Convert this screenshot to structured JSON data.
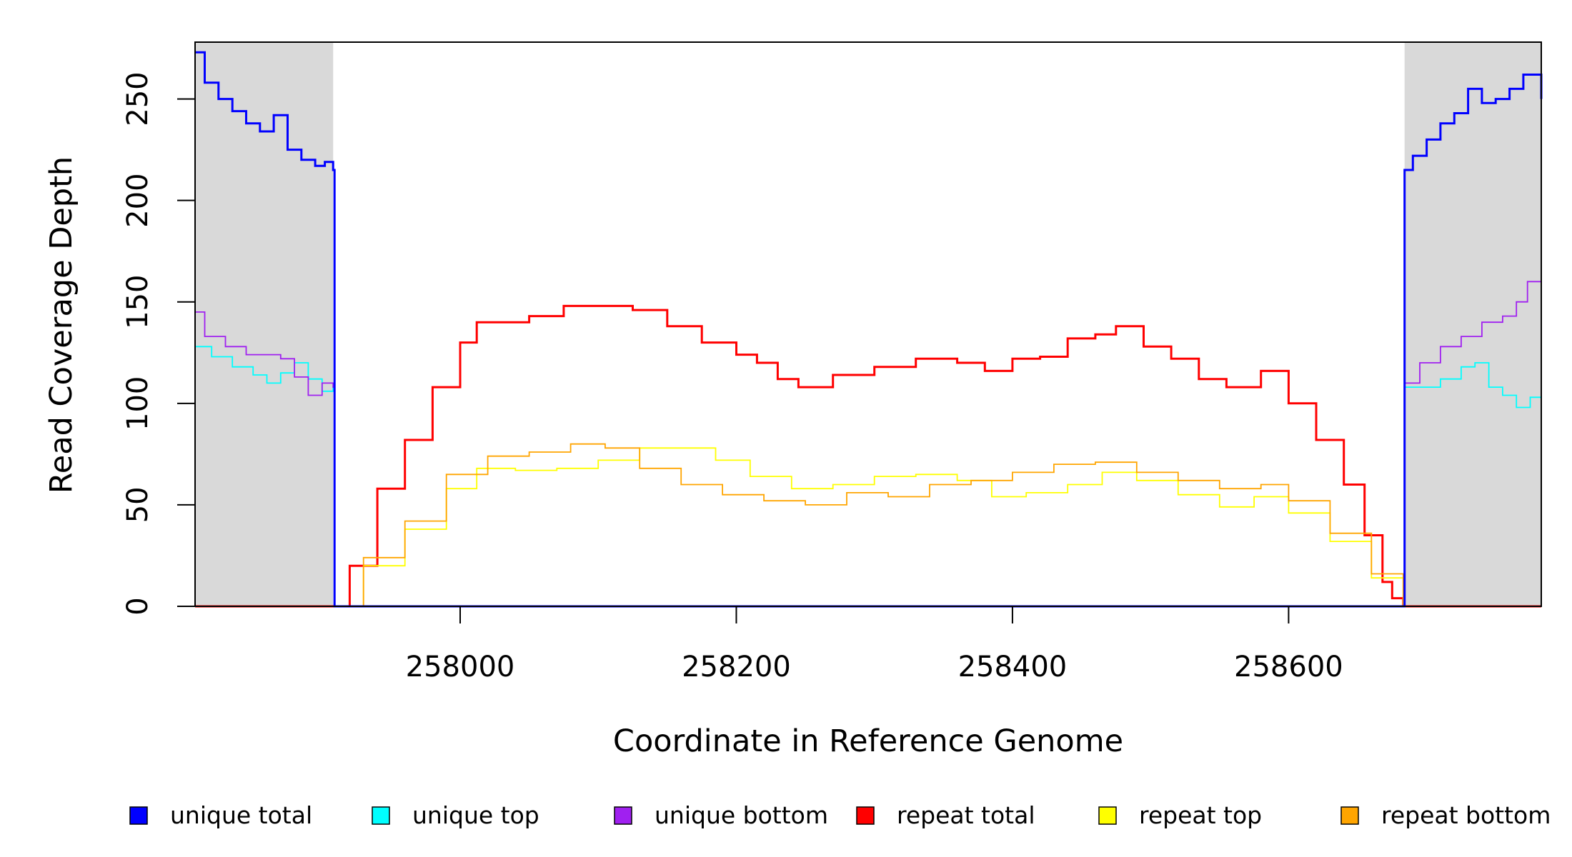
{
  "chart_data": {
    "type": "line",
    "title": "",
    "xlabel": "Coordinate in Reference Genome",
    "ylabel": "Read Coverage Depth",
    "xlim": [
      257808,
      258783
    ],
    "ylim": [
      0,
      278
    ],
    "x_ticks": [
      258000,
      258200,
      258400,
      258600
    ],
    "y_ticks": [
      0,
      50,
      100,
      150,
      200,
      250
    ],
    "grid": false,
    "legend_position": "bottom",
    "shaded_regions": [
      {
        "x0": 257808,
        "x1": 257908,
        "color": "#d9d9d9"
      },
      {
        "x0": 258684,
        "x1": 258783,
        "color": "#d9d9d9"
      }
    ],
    "series": [
      {
        "name": "unique total",
        "color": "#0000ff",
        "x": [
          257808,
          257815,
          257825,
          257835,
          257845,
          257855,
          257865,
          257875,
          257885,
          257895,
          257902,
          257908,
          257909,
          258683,
          258684,
          258690,
          258700,
          258710,
          258720,
          258730,
          258740,
          258750,
          258760,
          258770,
          258783
        ],
        "y": [
          273,
          258,
          250,
          244,
          238,
          234,
          242,
          225,
          220,
          217,
          219,
          215,
          0,
          0,
          215,
          222,
          230,
          238,
          243,
          255,
          248,
          250,
          255,
          262,
          250
        ]
      },
      {
        "name": "unique top",
        "color": "#00ffff",
        "x": [
          257808,
          257820,
          257835,
          257850,
          257860,
          257870,
          257880,
          257890,
          257900,
          257908,
          257909,
          258683,
          258684,
          258695,
          258710,
          258725,
          258735,
          258745,
          258755,
          258765,
          258775,
          258783
        ],
        "y": [
          128,
          123,
          118,
          114,
          110,
          115,
          120,
          112,
          106,
          108,
          0,
          0,
          108,
          108,
          112,
          118,
          120,
          108,
          104,
          98,
          103,
          105
        ]
      },
      {
        "name": "unique bottom",
        "color": "#a020f0",
        "x": [
          257808,
          257815,
          257830,
          257845,
          257860,
          257870,
          257880,
          257890,
          257900,
          257908,
          257909,
          258683,
          258684,
          258695,
          258710,
          258725,
          258740,
          258755,
          258765,
          258773,
          258783
        ],
        "y": [
          145,
          133,
          128,
          124,
          124,
          122,
          113,
          104,
          110,
          108,
          0,
          0,
          110,
          120,
          128,
          133,
          140,
          143,
          150,
          160,
          144
        ]
      },
      {
        "name": "repeat total",
        "color": "#ff0000",
        "x": [
          257808,
          257908,
          257920,
          257940,
          257960,
          257980,
          258000,
          258012,
          258030,
          258050,
          258075,
          258100,
          258125,
          258150,
          258175,
          258200,
          258215,
          258230,
          258245,
          258270,
          258300,
          258330,
          258360,
          258380,
          258400,
          258420,
          258440,
          258460,
          258475,
          258495,
          258515,
          258535,
          258555,
          258572,
          258580,
          258600,
          258620,
          258640,
          258655,
          258668,
          258675,
          258683,
          258783
        ],
        "y": [
          0,
          0,
          20,
          58,
          82,
          108,
          130,
          140,
          140,
          143,
          148,
          148,
          146,
          138,
          130,
          124,
          120,
          112,
          108,
          114,
          118,
          122,
          120,
          116,
          122,
          123,
          132,
          134,
          138,
          128,
          122,
          112,
          108,
          108,
          116,
          100,
          82,
          60,
          35,
          12,
          4,
          0,
          0
        ]
      },
      {
        "name": "repeat top",
        "color": "#ffff00",
        "x": [
          257808,
          257908,
          257930,
          257960,
          257990,
          258012,
          258040,
          258070,
          258100,
          258130,
          258160,
          258185,
          258210,
          258240,
          258270,
          258300,
          258330,
          258360,
          258385,
          258410,
          258440,
          258465,
          258490,
          258520,
          258550,
          258575,
          258600,
          258630,
          258660,
          258683,
          258783
        ],
        "y": [
          0,
          0,
          20,
          38,
          58,
          68,
          67,
          68,
          72,
          78,
          78,
          72,
          64,
          58,
          60,
          64,
          65,
          62,
          54,
          56,
          60,
          66,
          62,
          55,
          49,
          54,
          46,
          32,
          14,
          0,
          0
        ]
      },
      {
        "name": "repeat bottom",
        "color": "#ffa500",
        "x": [
          257808,
          257908,
          257930,
          257960,
          257990,
          258020,
          258050,
          258080,
          258105,
          258130,
          258160,
          258190,
          258220,
          258250,
          258280,
          258310,
          258340,
          258370,
          258400,
          258430,
          258460,
          258490,
          258520,
          258550,
          258580,
          258600,
          258630,
          258660,
          258683,
          258783
        ],
        "y": [
          0,
          0,
          24,
          42,
          65,
          74,
          76,
          80,
          78,
          68,
          60,
          55,
          52,
          50,
          56,
          54,
          60,
          62,
          66,
          70,
          71,
          66,
          62,
          58,
          60,
          52,
          36,
          16,
          0,
          0
        ]
      }
    ]
  }
}
